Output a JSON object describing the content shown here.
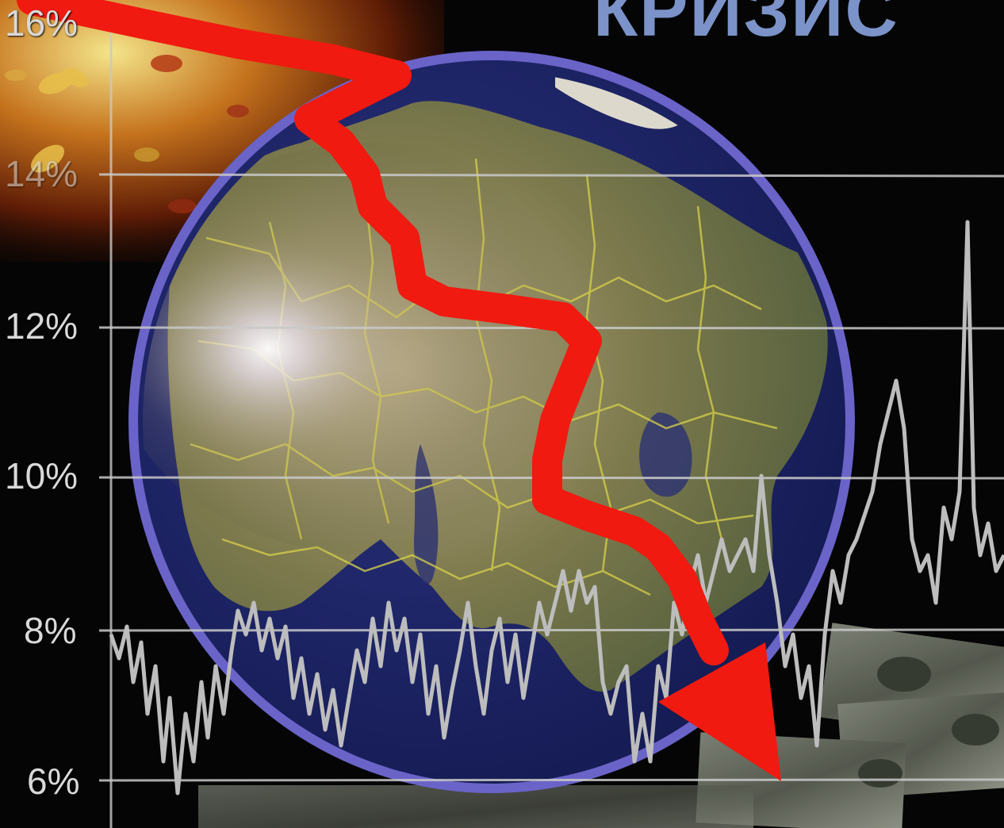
{
  "title": {
    "text": "КРИЗИС",
    "color": "#7b93c9"
  },
  "axis": {
    "tick_labels": [
      "16%",
      "14%",
      "12%",
      "10%",
      "8%",
      "6%"
    ],
    "gridline_color": "#c9c9c9",
    "label_color": "#d9d9d9"
  },
  "colors": {
    "background": "#050505",
    "arrow": "#f01a10",
    "globe_rim": "#6a63c8",
    "globe_ocean": "#1b2366",
    "land": "#7b7a4c",
    "borders": "#d8d24a",
    "noise_line": "#bdbdbd",
    "banknotes": "#6e7466"
  },
  "scene": {
    "objects": [
      "globe",
      "falling-red-arrow",
      "gray-noise-series",
      "banknotes",
      "butterflies"
    ]
  }
}
